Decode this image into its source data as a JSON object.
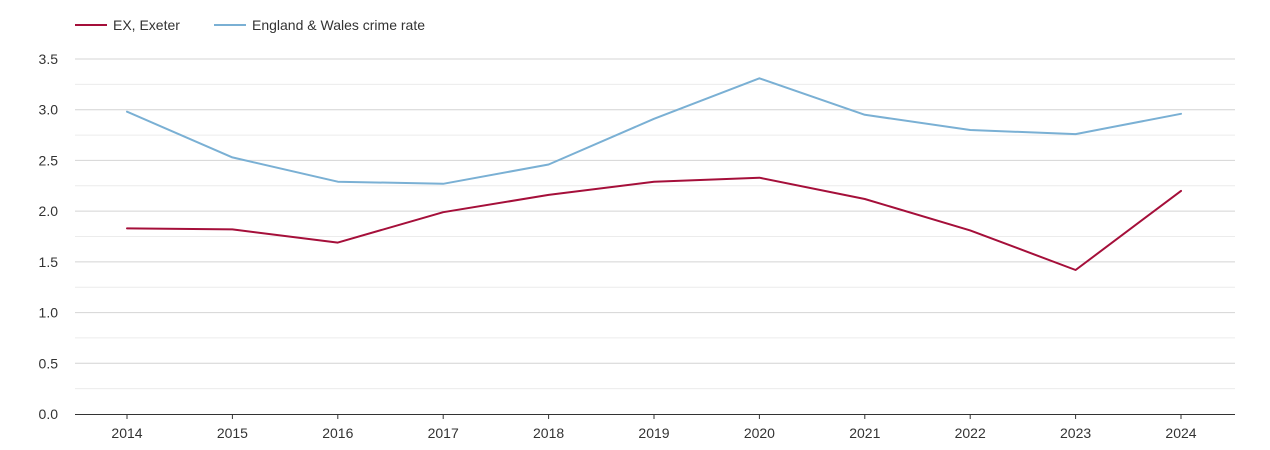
{
  "chart_data": {
    "type": "line",
    "title": "",
    "xlabel": "",
    "ylabel": "",
    "categories": [
      "2014",
      "2015",
      "2016",
      "2017",
      "2018",
      "2019",
      "2020",
      "2021",
      "2022",
      "2023",
      "2024"
    ],
    "ylim": [
      0,
      3.5
    ],
    "yticks": [
      "0.0",
      "0.5",
      "1.0",
      "1.5",
      "2.0",
      "2.5",
      "3.0",
      "3.5"
    ],
    "ytick_values": [
      0,
      0.5,
      1.0,
      1.5,
      2.0,
      2.5,
      3.0,
      3.5
    ],
    "grid": true,
    "legend_position": "top-left",
    "series": [
      {
        "name": "EX, Exeter",
        "color": "#a50f3a",
        "values": [
          1.83,
          1.82,
          1.69,
          1.99,
          2.16,
          2.29,
          2.33,
          2.12,
          1.81,
          1.42,
          2.2
        ]
      },
      {
        "name": "England & Wales crime rate",
        "color": "#7ab0d4",
        "values": [
          2.98,
          2.53,
          2.29,
          2.27,
          2.46,
          2.91,
          3.31,
          2.95,
          2.8,
          2.76,
          2.96
        ]
      }
    ]
  }
}
